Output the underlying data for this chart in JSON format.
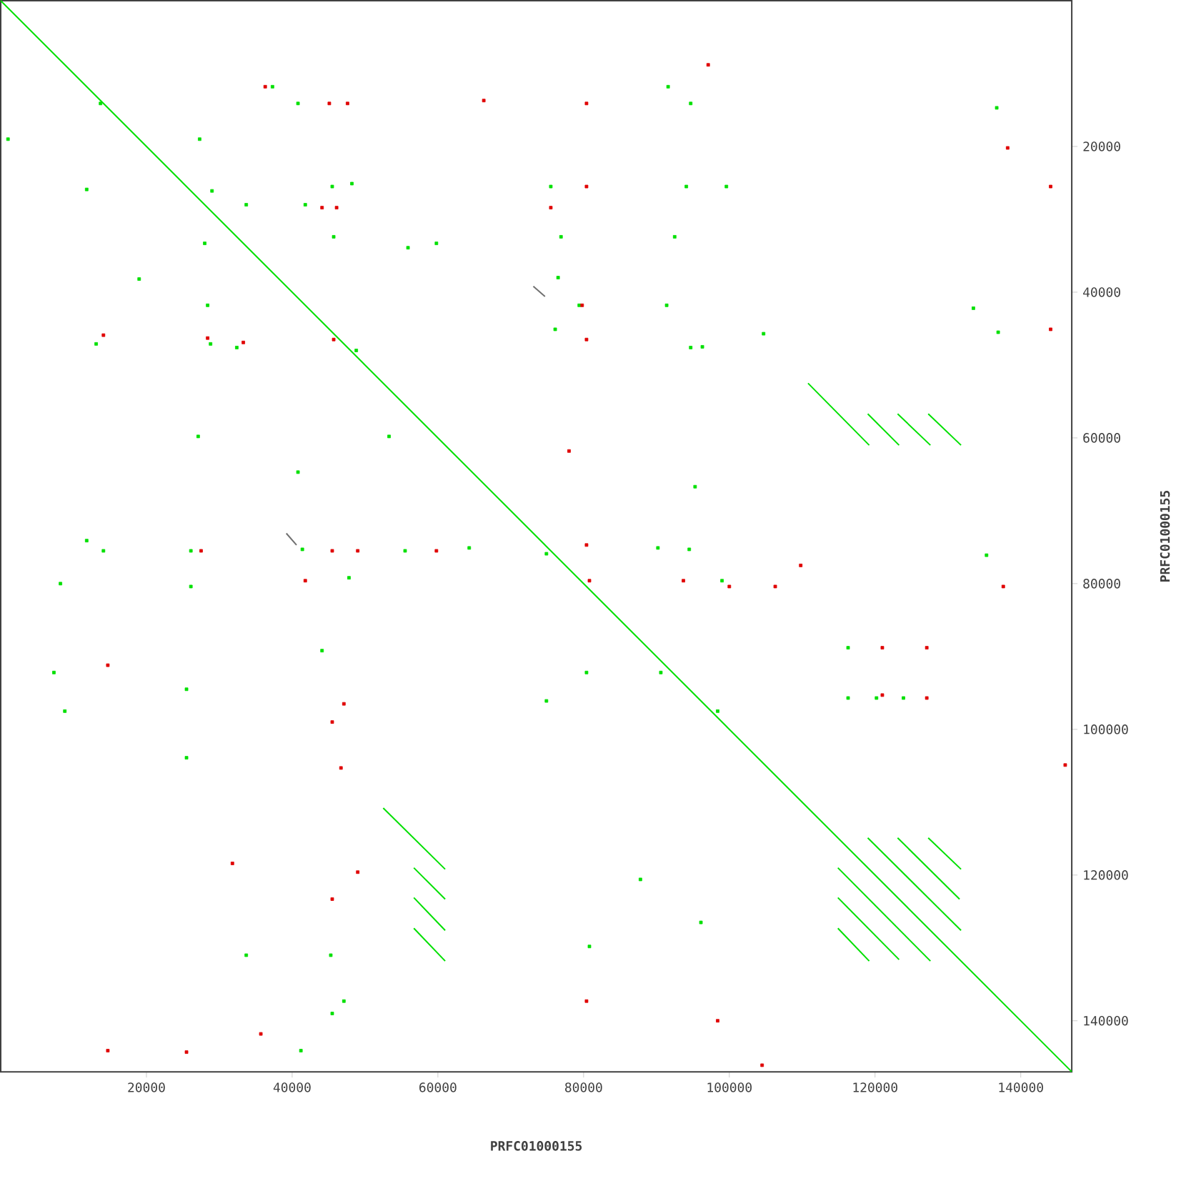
{
  "chart_data": {
    "type": "line",
    "xlabel": "PRFC01000155",
    "ylabel": "PRFC01000155",
    "xlim": [
      0,
      147000
    ],
    "ylim": [
      147000,
      0
    ],
    "xticks": [
      20000,
      40000,
      60000,
      80000,
      100000,
      120000,
      140000
    ],
    "yticks": [
      20000,
      40000,
      60000,
      80000,
      100000,
      120000,
      140000
    ],
    "series": [
      {
        "color": "#00e000",
        "x": [
          0,
          147000
        ],
        "values": [
          0,
          147000
        ]
      },
      {
        "color": "#00e000",
        "x": [
          110800,
          119200
        ],
        "values": [
          52500,
          61000
        ]
      },
      {
        "color": "#00e000",
        "x": [
          119000,
          123300
        ],
        "values": [
          56700,
          61000
        ]
      },
      {
        "color": "#00e000",
        "x": [
          123100,
          127600
        ],
        "values": [
          56700,
          61000
        ]
      },
      {
        "color": "#00e000",
        "x": [
          127300,
          131800
        ],
        "values": [
          56700,
          61000
        ]
      },
      {
        "color": "#00e000",
        "x": [
          52500,
          61000
        ],
        "values": [
          110800,
          119200
        ]
      },
      {
        "color": "#00e000",
        "x": [
          56700,
          61000
        ],
        "values": [
          119000,
          123300
        ]
      },
      {
        "color": "#00e000",
        "x": [
          56700,
          61000
        ],
        "values": [
          123100,
          127600
        ]
      },
      {
        "color": "#00e000",
        "x": [
          56700,
          61000
        ],
        "values": [
          127300,
          131800
        ]
      },
      {
        "color": "#00e000",
        "x": [
          119000,
          131800
        ],
        "values": [
          114900,
          127600
        ]
      },
      {
        "color": "#00e000",
        "x": [
          123100,
          131600
        ],
        "values": [
          114900,
          123300
        ]
      },
      {
        "color": "#00e000",
        "x": [
          127300,
          131800
        ],
        "values": [
          114900,
          119200
        ]
      },
      {
        "color": "#00e000",
        "x": [
          114900,
          127600
        ],
        "values": [
          119000,
          131800
        ]
      },
      {
        "color": "#00e000",
        "x": [
          114900,
          123300
        ],
        "values": [
          123100,
          131600
        ]
      },
      {
        "color": "#00e000",
        "x": [
          114900,
          119200
        ],
        "values": [
          127300,
          131800
        ]
      },
      {
        "color": "#707070",
        "x": [
          73100,
          74700
        ],
        "values": [
          39200,
          40600
        ]
      },
      {
        "color": "#707070",
        "x": [
          39200,
          40600
        ],
        "values": [
          73100,
          74700
        ]
      },
      {
        "type": "scatter",
        "marker": "square",
        "color": "#00e000",
        "x": [
          13700,
          37300,
          40800,
          91600,
          94700,
          1000,
          27300,
          11800,
          29000,
          33700,
          41800,
          45500,
          48200,
          75500,
          94100,
          99600,
          76900,
          92500,
          28000,
          45700,
          59800,
          76500,
          19000,
          28400,
          79400,
          91400,
          94700,
          104700,
          133500,
          136900,
          13100,
          28800,
          32400,
          48800,
          76100,
          96300,
          27100,
          40800,
          53300,
          95300,
          11800,
          14100,
          26100,
          41400,
          55500,
          47800,
          64300,
          74900,
          90200,
          94500,
          99000,
          26100,
          8200,
          7300,
          8800,
          25500,
          44100,
          74900,
          80400,
          90600,
          98400,
          116300,
          120200,
          123900,
          116300,
          25500,
          87800,
          96100,
          80800,
          33700,
          45300,
          135300,
          136700,
          45500,
          47100,
          41200,
          55900
        ],
        "values": [
          14100,
          11800,
          14100,
          11800,
          14100,
          19000,
          19000,
          25900,
          26100,
          28000,
          28000,
          25500,
          25100,
          25500,
          25500,
          25500,
          32400,
          32400,
          33300,
          32400,
          33300,
          38000,
          38200,
          41800,
          41800,
          41800,
          47600,
          45700,
          42200,
          45500,
          47100,
          47100,
          47600,
          48000,
          45100,
          47500,
          59800,
          64700,
          59800,
          66700,
          74100,
          75500,
          75500,
          75300,
          75500,
          79200,
          75100,
          75900,
          75100,
          75300,
          79600,
          80400,
          80000,
          92200,
          97500,
          94500,
          89200,
          96100,
          92200,
          92200,
          97500,
          88800,
          95700,
          95700,
          95700,
          103900,
          120600,
          126500,
          129800,
          131000,
          131000,
          76100,
          14700,
          139000,
          137300,
          144100,
          33900
        ]
      },
      {
        "type": "scatter",
        "marker": "square",
        "color": "#e00000",
        "x": [
          36300,
          45100,
          47600,
          66300,
          80400,
          97100,
          44100,
          46100,
          75500,
          80400,
          79800,
          80400,
          33300,
          45700,
          28400,
          14100,
          78000,
          45500,
          41800,
          27500,
          49000,
          59800,
          80400,
          93700,
          80800,
          100000,
          106300,
          137600,
          14700,
          47100,
          45500,
          46700,
          31800,
          45500,
          49000,
          109800,
          121000,
          121000,
          127100,
          127100,
          138200,
          144100,
          144100,
          146100,
          104500,
          35700,
          25500,
          98400,
          14700,
          80400
        ],
        "values": [
          11800,
          14100,
          14100,
          13700,
          14100,
          8800,
          28400,
          28400,
          28400,
          25500,
          41800,
          46500,
          46900,
          46500,
          46300,
          45900,
          61800,
          75500,
          79600,
          75500,
          75500,
          75500,
          74700,
          79600,
          79600,
          80400,
          80400,
          80400,
          91200,
          96500,
          99000,
          105300,
          118400,
          123300,
          119600,
          77500,
          88800,
          95300,
          88800,
          95700,
          20200,
          25500,
          45100,
          104900,
          146100,
          141800,
          144300,
          140000,
          144100,
          137300
        ]
      }
    ]
  }
}
